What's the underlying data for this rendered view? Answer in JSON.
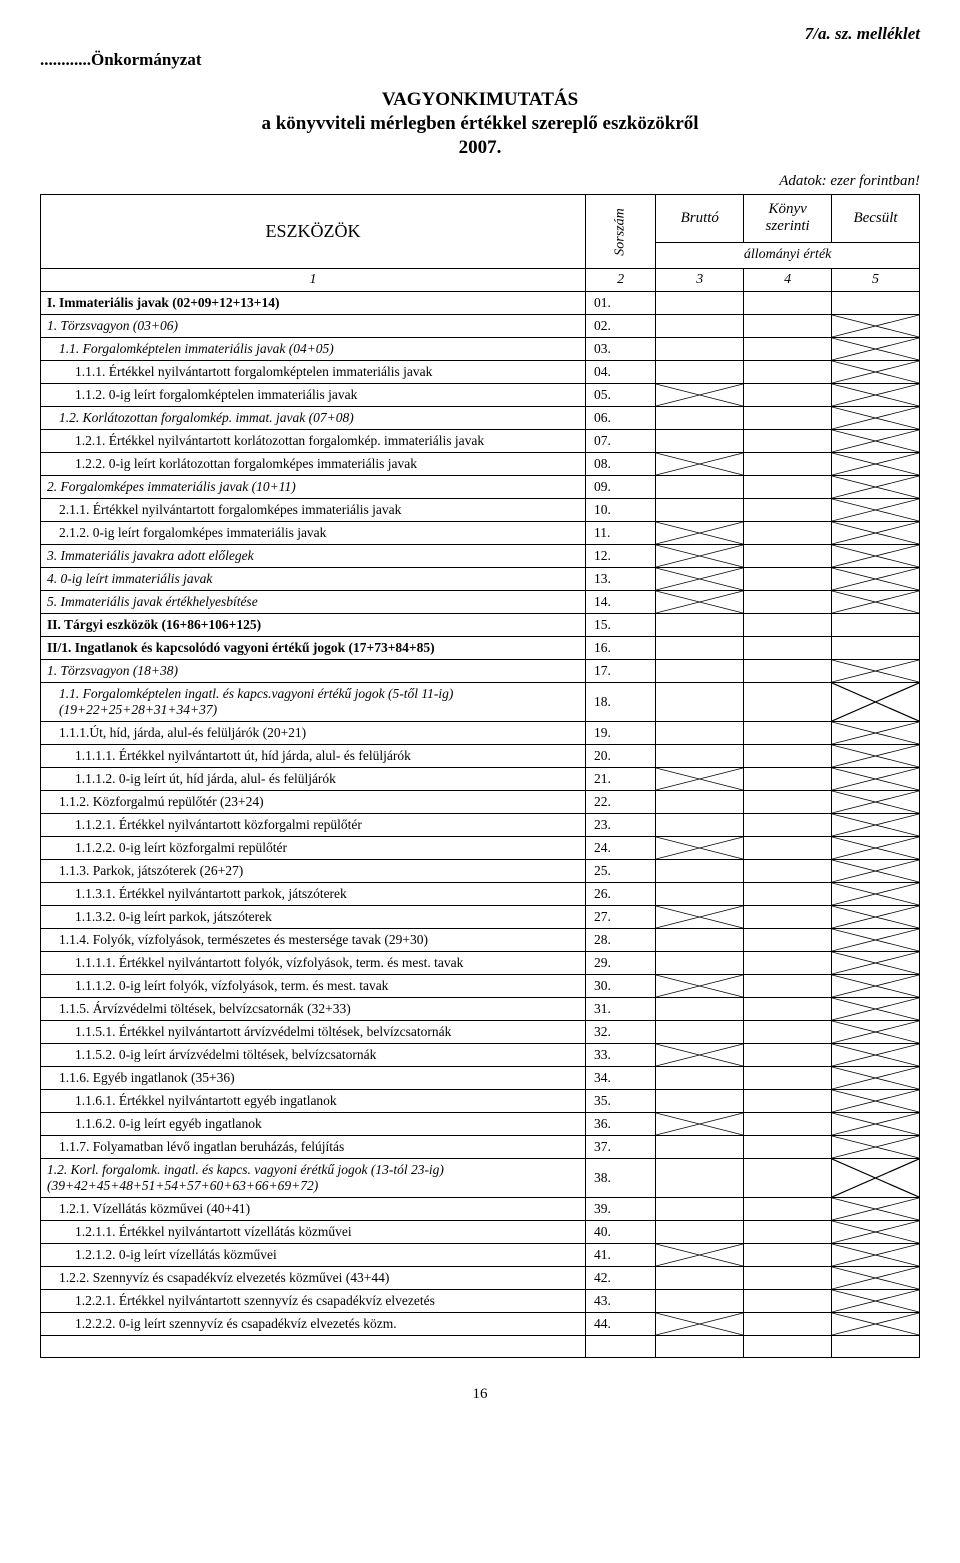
{
  "header": {
    "top_right": "7/a. sz. melléklet",
    "top_left": "............Önkormányzat",
    "title_l1": "VAGYONKIMUTATÁS",
    "title_l2": "a könyvviteli mérlegben értékkel szereplő eszközökről",
    "title_l3": "2007.",
    "note_right": "Adatok: ezer forintban!"
  },
  "thead": {
    "eszk": "ESZKÖZÖK",
    "sorszam": "Sorszám",
    "brutto": "Bruttó",
    "konyv": "Könyv szerinti",
    "becsult": "Becsült",
    "allomany": "állományi érték",
    "c1": "1",
    "c2": "2",
    "c3": "3",
    "c4": "4",
    "c5": "5"
  },
  "rows": [
    {
      "d": "I. Immateriális javak   (02+09+12+13+14)",
      "n": "01.",
      "i": 0,
      "b": true,
      "h": [
        false,
        false,
        false
      ]
    },
    {
      "d": "1. Törzsvagyon    (03+06)",
      "n": "02.",
      "i": 0,
      "it": true,
      "h": [
        false,
        false,
        true
      ]
    },
    {
      "d": "1.1. Forgalomképtelen immateriális javak   (04+05)",
      "n": "03.",
      "i": 1,
      "it": true,
      "h": [
        false,
        false,
        true
      ]
    },
    {
      "d": "1.1.1. Értékkel nyilvántartott forgalomképtelen immateriális javak",
      "n": "04.",
      "i": 2,
      "h": [
        false,
        false,
        true
      ]
    },
    {
      "d": "1.1.2. 0-ig leírt forgalomképtelen immateriális javak",
      "n": "05.",
      "i": 2,
      "h": [
        true,
        false,
        true
      ]
    },
    {
      "d": "1.2.  Korlátozottan forgalomkép. immat. javak  (07+08)",
      "n": "06.",
      "i": 1,
      "it": true,
      "h": [
        false,
        false,
        true
      ]
    },
    {
      "d": "1.2.1. Értékkel nyilvántartott korlátozottan forgalomkép. immateriális javak",
      "n": "07.",
      "i": 2,
      "h": [
        false,
        false,
        true
      ]
    },
    {
      "d": "1.2.2. 0-ig leírt korlátozottan forgalomképes immateriális javak",
      "n": "08.",
      "i": 2,
      "h": [
        true,
        false,
        true
      ]
    },
    {
      "d": "2. Forgalomképes immateriális javak     (10+11)",
      "n": "09.",
      "i": 0,
      "it": true,
      "h": [
        false,
        false,
        true
      ]
    },
    {
      "d": "2.1.1. Értékkel nyilvántartott forgalomképes immateriális javak",
      "n": "10.",
      "i": 1,
      "h": [
        false,
        false,
        true
      ]
    },
    {
      "d": "2.1.2. 0-ig leírt forgalomképes immateriális javak",
      "n": "11.",
      "i": 1,
      "h": [
        true,
        false,
        true
      ]
    },
    {
      "d": "3. Immateriális javakra adott előlegek",
      "n": "12.",
      "i": 0,
      "it": true,
      "h": [
        true,
        false,
        true
      ]
    },
    {
      "d": "4. 0-ig leírt immateriális javak",
      "n": "13.",
      "i": 0,
      "it": true,
      "h": [
        true,
        false,
        true
      ]
    },
    {
      "d": "5. Immateriális javak értékhelyesbítése",
      "n": "14.",
      "i": 0,
      "it": true,
      "h": [
        true,
        false,
        true
      ]
    },
    {
      "d": "II. Tárgyi eszközök   (16+86+106+125)",
      "n": "15.",
      "i": 0,
      "b": true,
      "h": [
        false,
        false,
        false
      ]
    },
    {
      "d": "II/1. Ingatlanok és kapcsolódó vagyoni értékű jogok   (17+73+84+85)",
      "n": "16.",
      "i": 0,
      "b": true,
      "h": [
        false,
        false,
        false
      ]
    },
    {
      "d": "1. Törzsvagyon   (18+38)",
      "n": "17.",
      "i": 0,
      "it": true,
      "h": [
        false,
        false,
        true
      ]
    },
    {
      "d": "1.1. Forgalomképtelen ingatl. és kapcs.vagyoni értékű jogok (5-től 11-ig)   (19+22+25+28+31+34+37)",
      "n": "18.",
      "i": 1,
      "it": true,
      "h": [
        false,
        false,
        true
      ]
    },
    {
      "d": "1.1.1.Út, híd, járda, alul-és felüljárók   (20+21)",
      "n": "19.",
      "i": 1,
      "h": [
        false,
        false,
        true
      ]
    },
    {
      "d": "1.1.1.1.  Értékkel nyilvántartott út, híd járda, alul- és felüljárók",
      "n": "20.",
      "i": 2,
      "h": [
        false,
        false,
        true
      ]
    },
    {
      "d": "1.1.1.2.  0-ig leírt út, híd járda, alul- és felüljárók",
      "n": "21.",
      "i": 2,
      "h": [
        true,
        false,
        true
      ]
    },
    {
      "d": "1.1.2. Közforgalmú repülőtér   (23+24)",
      "n": "22.",
      "i": 1,
      "h": [
        false,
        false,
        true
      ]
    },
    {
      "d": "1.1.2.1.  Értékkel nyilvántartott közforgalmi repülőtér",
      "n": "23.",
      "i": 2,
      "h": [
        false,
        false,
        true
      ]
    },
    {
      "d": "1.1.2.2.  0-ig leírt közforgalmi repülőtér",
      "n": "24.",
      "i": 2,
      "h": [
        true,
        false,
        true
      ]
    },
    {
      "d": "1.1.3. Parkok, játszóterek   (26+27)",
      "n": "25.",
      "i": 1,
      "h": [
        false,
        false,
        true
      ]
    },
    {
      "d": "1.1.3.1.  Értékkel nyilvántartott parkok, játszóterek",
      "n": "26.",
      "i": 2,
      "h": [
        false,
        false,
        true
      ]
    },
    {
      "d": "1.1.3.2.  0-ig leírt parkok, játszóterek",
      "n": "27.",
      "i": 2,
      "h": [
        true,
        false,
        true
      ]
    },
    {
      "d": "1.1.4. Folyók, vízfolyások, természetes és mestersége tavak   (29+30)",
      "n": "28.",
      "i": 1,
      "h": [
        false,
        false,
        true
      ]
    },
    {
      "d": "1.1.1.1.  Értékkel nyilvántartott folyók, vízfolyások, term. és mest. tavak",
      "n": "29.",
      "i": 2,
      "h": [
        false,
        false,
        true
      ]
    },
    {
      "d": "1.1.1.2.  0-ig leírt folyók, vízfolyások, term. és mest. tavak",
      "n": "30.",
      "i": 2,
      "h": [
        true,
        false,
        true
      ]
    },
    {
      "d": "1.1.5. Árvízvédelmi töltések, belvízcsatornák   (32+33)",
      "n": "31.",
      "i": 1,
      "h": [
        false,
        false,
        true
      ]
    },
    {
      "d": "1.1.5.1.  Értékkel nyilvántartott árvízvédelmi töltések, belvízcsatornák",
      "n": "32.",
      "i": 2,
      "h": [
        false,
        false,
        true
      ]
    },
    {
      "d": "1.1.5.2.  0-ig leírt árvízvédelmi töltések, belvízcsatornák",
      "n": "33.",
      "i": 2,
      "h": [
        true,
        false,
        true
      ]
    },
    {
      "d": "1.1.6. Egyéb ingatlanok    (35+36)",
      "n": "34.",
      "i": 1,
      "h": [
        false,
        false,
        true
      ]
    },
    {
      "d": "1.1.6.1.  Értékkel nyilvántartott egyéb ingatlanok",
      "n": "35.",
      "i": 2,
      "h": [
        false,
        false,
        true
      ]
    },
    {
      "d": "1.1.6.2.  0-ig leírt egyéb ingatlanok",
      "n": "36.",
      "i": 2,
      "h": [
        true,
        false,
        true
      ]
    },
    {
      "d": "1.1.7. Folyamatban lévő ingatlan beruházás, felújítás",
      "n": "37.",
      "i": 1,
      "h": [
        false,
        false,
        true
      ]
    },
    {
      "d": "1.2. Korl. forgalomk. ingatl. és kapcs. vagyoni érétkű jogok (13-tól 23-ig) (39+42+45+48+51+54+57+60+63+66+69+72)",
      "n": "38.",
      "i": 0,
      "it": true,
      "h": [
        false,
        false,
        true
      ]
    },
    {
      "d": "1.2.1.  Vízellátás közművei  (40+41)",
      "n": "39.",
      "i": 1,
      "h": [
        false,
        false,
        true
      ]
    },
    {
      "d": "1.2.1.1.  Értékkel nyilvántartott vízellátás közművei",
      "n": "40.",
      "i": 2,
      "h": [
        false,
        false,
        true
      ]
    },
    {
      "d": "1.2.1.2.  0-ig leírt vízellátás közművei",
      "n": "41.",
      "i": 2,
      "h": [
        true,
        false,
        true
      ]
    },
    {
      "d": "1.2.2.  Szennyvíz és csapadékvíz elvezetés közművei  (43+44)",
      "n": "42.",
      "i": 1,
      "h": [
        false,
        false,
        true
      ]
    },
    {
      "d": "1.2.2.1.  Értékkel nyilvántartott szennyvíz és csapadékvíz elvezetés",
      "n": "43.",
      "i": 2,
      "h": [
        false,
        false,
        true
      ]
    },
    {
      "d": "1.2.2.2.  0-ig leírt szennyvíz és csapadékvíz elvezetés közm.",
      "n": "44.",
      "i": 2,
      "h": [
        true,
        false,
        true
      ]
    }
  ],
  "page_number": "16",
  "style": {
    "hatch_stroke": "#000000",
    "hatch_width": 1,
    "border_color": "#000000",
    "bg": "#ffffff"
  }
}
